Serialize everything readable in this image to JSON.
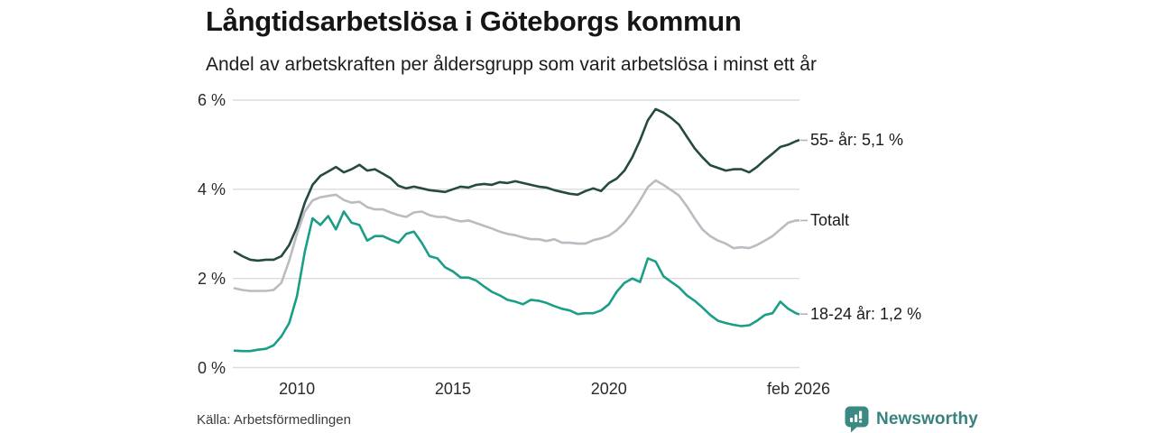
{
  "header": {
    "title": "Långtidsarbetslösa i Göteborgs kommun",
    "subtitle": "Andel av arbetskraften per åldersgrupp som varit arbetslösa i minst ett år"
  },
  "chart_data": {
    "type": "line",
    "title": "Långtidsarbetslösa i Göteborgs kommun",
    "subtitle": "Andel av arbetskraften per åldersgrupp som varit arbetslösa i minst ett år",
    "x_unit": "year (decimal, monthly series approximated quarterly, last point = feb 2026)",
    "ylim": [
      0,
      6
    ],
    "xlim": [
      2008,
      2026.083
    ],
    "grid": "horizontal",
    "legend_position": "right-end-labels",
    "x": [
      2008,
      2008.25,
      2008.5,
      2008.75,
      2009,
      2009.25,
      2009.5,
      2009.75,
      2010,
      2010.25,
      2010.5,
      2010.75,
      2011,
      2011.25,
      2011.5,
      2011.75,
      2012,
      2012.25,
      2012.5,
      2012.75,
      2013,
      2013.25,
      2013.5,
      2013.75,
      2014,
      2014.25,
      2014.5,
      2014.75,
      2015,
      2015.25,
      2015.5,
      2015.75,
      2016,
      2016.25,
      2016.5,
      2016.75,
      2017,
      2017.25,
      2017.5,
      2017.75,
      2018,
      2018.25,
      2018.5,
      2018.75,
      2019,
      2019.25,
      2019.5,
      2019.75,
      2020,
      2020.25,
      2020.5,
      2020.75,
      2021,
      2021.25,
      2021.5,
      2021.75,
      2022,
      2022.25,
      2022.5,
      2022.75,
      2023,
      2023.25,
      2023.5,
      2023.75,
      2024,
      2024.25,
      2024.5,
      2024.75,
      2025,
      2025.25,
      2025.5,
      2025.75,
      2026,
      2026.083
    ],
    "series": [
      {
        "name": "55- år",
        "end_label": "55- år: 5,1 %",
        "latest_value": 5.1,
        "color": "#254a42",
        "values": [
          2.6,
          2.5,
          2.42,
          2.4,
          2.42,
          2.42,
          2.5,
          2.75,
          3.15,
          3.7,
          4.1,
          4.3,
          4.4,
          4.5,
          4.38,
          4.45,
          4.55,
          4.42,
          4.45,
          4.35,
          4.25,
          4.08,
          4.02,
          4.06,
          4.02,
          3.98,
          3.96,
          3.94,
          4.0,
          4.06,
          4.04,
          4.1,
          4.12,
          4.1,
          4.16,
          4.14,
          4.18,
          4.14,
          4.1,
          4.06,
          4.04,
          3.98,
          3.94,
          3.9,
          3.88,
          3.96,
          4.02,
          3.96,
          4.14,
          4.24,
          4.42,
          4.72,
          5.1,
          5.55,
          5.8,
          5.72,
          5.6,
          5.45,
          5.18,
          4.92,
          4.72,
          4.54,
          4.48,
          4.42,
          4.45,
          4.45,
          4.38,
          4.5,
          4.66,
          4.8,
          4.95,
          5.0,
          5.08,
          5.1
        ]
      },
      {
        "name": "Totalt",
        "end_label": "Totalt",
        "latest_value": 3.3,
        "color": "#bdbac2",
        "values": [
          1.78,
          1.74,
          1.72,
          1.72,
          1.72,
          1.74,
          1.9,
          2.4,
          3.0,
          3.5,
          3.75,
          3.82,
          3.85,
          3.88,
          3.76,
          3.7,
          3.72,
          3.6,
          3.55,
          3.55,
          3.48,
          3.42,
          3.38,
          3.48,
          3.5,
          3.42,
          3.38,
          3.38,
          3.32,
          3.28,
          3.3,
          3.24,
          3.18,
          3.12,
          3.05,
          3.0,
          2.97,
          2.92,
          2.88,
          2.88,
          2.84,
          2.88,
          2.8,
          2.8,
          2.78,
          2.78,
          2.86,
          2.9,
          2.96,
          3.08,
          3.25,
          3.48,
          3.75,
          4.05,
          4.2,
          4.1,
          3.98,
          3.86,
          3.62,
          3.35,
          3.1,
          2.95,
          2.85,
          2.78,
          2.68,
          2.7,
          2.68,
          2.75,
          2.85,
          2.95,
          3.1,
          3.25,
          3.3,
          3.3
        ]
      },
      {
        "name": "18-24 år",
        "end_label": "18-24 år: 1,2 %",
        "latest_value": 1.2,
        "color": "#1a9e87",
        "values": [
          0.38,
          0.37,
          0.37,
          0.4,
          0.42,
          0.5,
          0.7,
          1.0,
          1.6,
          2.6,
          3.35,
          3.2,
          3.4,
          3.1,
          3.5,
          3.25,
          3.2,
          2.85,
          2.95,
          2.95,
          2.87,
          2.8,
          3.0,
          3.05,
          2.8,
          2.5,
          2.45,
          2.25,
          2.16,
          2.02,
          2.02,
          1.95,
          1.82,
          1.7,
          1.62,
          1.52,
          1.48,
          1.42,
          1.52,
          1.5,
          1.45,
          1.38,
          1.32,
          1.28,
          1.2,
          1.22,
          1.22,
          1.28,
          1.42,
          1.7,
          1.9,
          2.0,
          1.92,
          2.45,
          2.38,
          2.05,
          1.92,
          1.8,
          1.62,
          1.5,
          1.35,
          1.18,
          1.05,
          1.0,
          0.96,
          0.93,
          0.95,
          1.05,
          1.18,
          1.22,
          1.48,
          1.32,
          1.22,
          1.2
        ]
      }
    ],
    "yticks": [
      {
        "label": "6 %",
        "value": 6
      },
      {
        "label": "4 %",
        "value": 4
      },
      {
        "label": "2 %",
        "value": 2
      },
      {
        "label": "0 %",
        "value": 0
      }
    ],
    "xticks": [
      {
        "label": "2010",
        "value": 2010
      },
      {
        "label": "2015",
        "value": 2015
      },
      {
        "label": "2020",
        "value": 2020
      },
      {
        "label": "feb 2026",
        "value": 2026.083
      }
    ]
  },
  "footer": {
    "source": "Källa: Arbetsförmedlingen",
    "brand": "Newsworthy"
  },
  "colors": {
    "grid": "#dcdcdc",
    "end_tick": "#b5b2ba",
    "axis_text": "#2b2b2b",
    "label_text": "#1b1b1b",
    "brand_teal": "#38837d"
  },
  "icons": {
    "brand_logo": "newsworthy-barchart-bubble-icon"
  }
}
